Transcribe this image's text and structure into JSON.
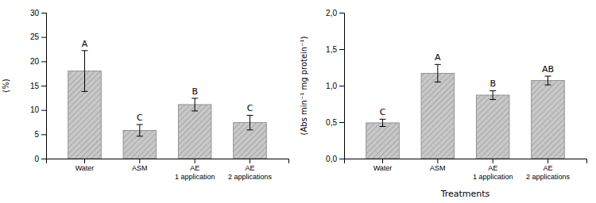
{
  "chart_data": [
    {
      "type": "bar",
      "categories": [
        "Water",
        "ASM",
        "AE\n1 application",
        "AE\n2 applications"
      ],
      "values": [
        18.0,
        5.8,
        11.1,
        7.4
      ],
      "errors": [
        4.2,
        1.2,
        1.3,
        1.5
      ],
      "annotations": [
        "A",
        "C",
        "B",
        "C"
      ],
      "color": "#c8c8c8",
      "ylim": [
        0,
        30
      ],
      "yticks": [
        0,
        5,
        10,
        15,
        20,
        25,
        30
      ],
      "y_label": "(%)"
    },
    {
      "type": "bar",
      "categories": [
        "Water",
        "ASM",
        "AE\n1 application",
        "AE\n2 applications"
      ],
      "values": [
        0.49,
        1.17,
        0.87,
        1.07
      ],
      "errors": [
        0.05,
        0.12,
        0.06,
        0.06
      ],
      "annotations": [
        "C",
        "A",
        "B",
        "AB"
      ],
      "color": "#c8c8c8",
      "ylim": [
        0,
        2.0
      ],
      "yticks": [
        {
          "value": 0.0,
          "label": "0,0"
        },
        {
          "value": 0.5,
          "label": "0,5"
        },
        {
          "value": 1.0,
          "label": "1,0"
        },
        {
          "value": 1.5,
          "label": "1,5"
        },
        {
          "value": 2.0,
          "label": "2,0"
        }
      ],
      "y_label": "(Abs min⁻¹ mg protein⁻¹)",
      "x_label": "Treatments"
    }
  ]
}
